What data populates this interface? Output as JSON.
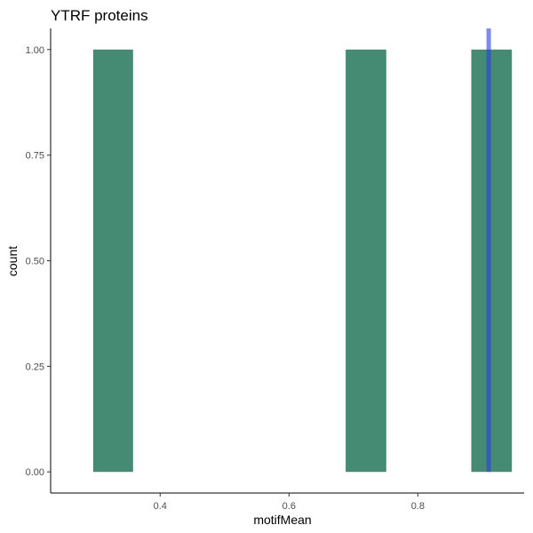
{
  "chart_data": {
    "type": "bar",
    "subtype": "histogram",
    "title": "YTRF proteins",
    "xlabel": "motifMean",
    "ylabel": "count",
    "xlim": [
      0.23,
      0.965
    ],
    "ylim": [
      -0.05,
      1.05
    ],
    "xticks": [
      {
        "value": 0.4,
        "label": "0.4"
      },
      {
        "value": 0.6,
        "label": "0.6"
      },
      {
        "value": 0.8,
        "label": "0.8"
      }
    ],
    "yticks": [
      {
        "value": 0.0,
        "label": "0.00"
      },
      {
        "value": 0.25,
        "label": "0.25"
      },
      {
        "value": 0.5,
        "label": "0.50"
      },
      {
        "value": 0.75,
        "label": "0.75"
      },
      {
        "value": 1.0,
        "label": "1.00"
      }
    ],
    "bins": [
      {
        "x0": 0.296,
        "x1": 0.358,
        "count": 1
      },
      {
        "x0": 0.688,
        "x1": 0.751,
        "count": 1
      },
      {
        "x0": 0.883,
        "x1": 0.946,
        "count": 1
      }
    ],
    "reference_line": {
      "x": 0.91
    },
    "colors": {
      "bar": "#458b74",
      "reference_line": "#2b3ee6",
      "reference_line_opacity": 0.6,
      "axis": "#000000"
    },
    "grid": false,
    "legend": "none"
  }
}
